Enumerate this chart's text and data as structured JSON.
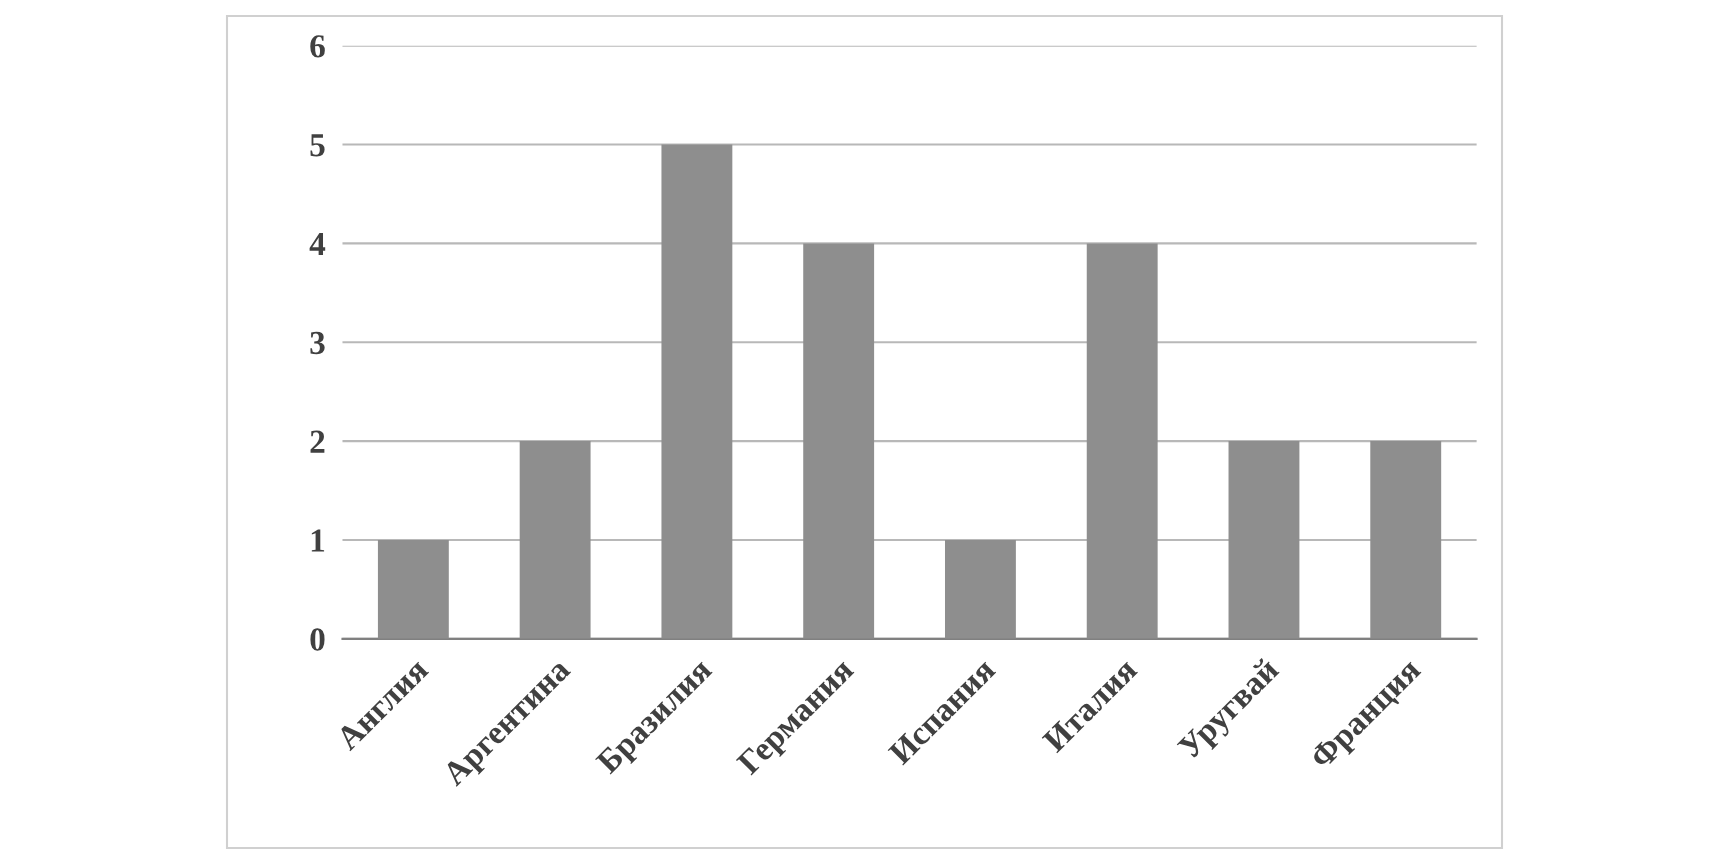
{
  "chart_data": {
    "type": "bar",
    "categories": [
      "Англия",
      "Аргентина",
      "Бразилия",
      "Германия",
      "Испания",
      "Италия",
      "Уругвай",
      "Франция"
    ],
    "values": [
      1,
      2,
      5,
      4,
      1,
      4,
      2,
      2
    ],
    "color": "#8e8e8e",
    "ylim": [
      0,
      6
    ],
    "yticks": [
      0,
      1,
      2,
      3,
      4,
      5,
      6
    ],
    "grid": "y",
    "legend": false
  }
}
